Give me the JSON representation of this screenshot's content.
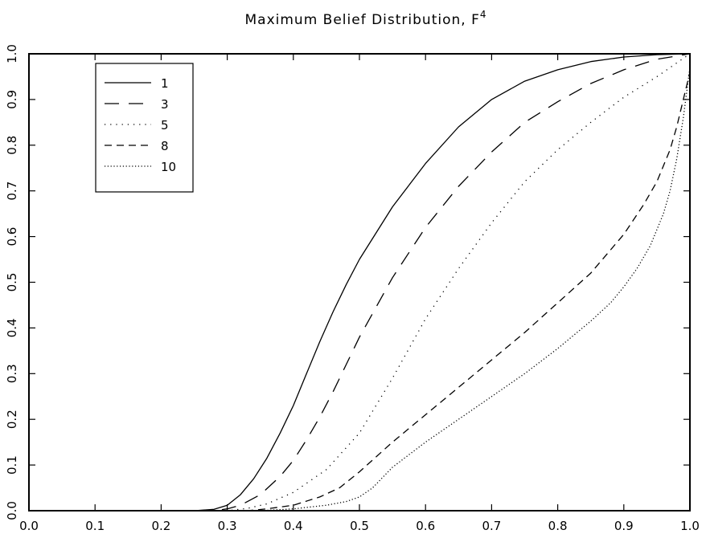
{
  "chart_data": {
    "type": "line",
    "title": "Maximum Belief Distribution, F",
    "title_superscript": "4",
    "xlabel": "",
    "ylabel": "",
    "xlim": [
      0.0,
      1.0
    ],
    "ylim": [
      0.0,
      1.0
    ],
    "x_ticks": [
      "0.0",
      "0.1",
      "0.2",
      "0.3",
      "0.4",
      "0.5",
      "0.6",
      "0.7",
      "0.8",
      "0.9",
      "1.0"
    ],
    "y_ticks": [
      "0.0",
      "0.1",
      "0.2",
      "0.3",
      "0.4",
      "0.5",
      "0.6",
      "0.7",
      "0.8",
      "0.9",
      "1.0"
    ],
    "grid": false,
    "legend_position": "top-left",
    "series": [
      {
        "name": "1",
        "dash": "solid",
        "color": "#000000",
        "x": [
          0.0,
          0.25,
          0.28,
          0.3,
          0.32,
          0.34,
          0.36,
          0.38,
          0.4,
          0.42,
          0.44,
          0.46,
          0.48,
          0.5,
          0.55,
          0.6,
          0.65,
          0.7,
          0.75,
          0.8,
          0.85,
          0.9,
          0.95,
          1.0
        ],
        "y": [
          0.0,
          0.0,
          0.003,
          0.012,
          0.035,
          0.07,
          0.115,
          0.17,
          0.23,
          0.3,
          0.37,
          0.435,
          0.495,
          0.55,
          0.665,
          0.76,
          0.84,
          0.9,
          0.94,
          0.965,
          0.983,
          0.993,
          0.998,
          1.0
        ]
      },
      {
        "name": "3",
        "dash": "long-dash",
        "color": "#000000",
        "x": [
          0.0,
          0.28,
          0.3,
          0.32,
          0.35,
          0.38,
          0.4,
          0.42,
          0.44,
          0.46,
          0.48,
          0.5,
          0.55,
          0.6,
          0.65,
          0.7,
          0.75,
          0.8,
          0.85,
          0.9,
          0.95,
          1.0
        ],
        "y": [
          0.0,
          0.0,
          0.004,
          0.012,
          0.035,
          0.075,
          0.11,
          0.155,
          0.205,
          0.26,
          0.32,
          0.38,
          0.51,
          0.62,
          0.71,
          0.785,
          0.85,
          0.895,
          0.935,
          0.965,
          0.988,
          1.0
        ]
      },
      {
        "name": "5",
        "dash": "sparse-dot",
        "color": "#000000",
        "x": [
          0.0,
          0.3,
          0.33,
          0.36,
          0.4,
          0.45,
          0.5,
          0.55,
          0.6,
          0.65,
          0.7,
          0.75,
          0.8,
          0.85,
          0.9,
          0.95,
          0.98,
          1.0
        ],
        "y": [
          0.0,
          0.0,
          0.005,
          0.015,
          0.04,
          0.09,
          0.17,
          0.29,
          0.42,
          0.53,
          0.63,
          0.72,
          0.79,
          0.85,
          0.905,
          0.95,
          0.98,
          1.0
        ]
      },
      {
        "name": "8",
        "dash": "short-dash",
        "color": "#000000",
        "x": [
          0.0,
          0.33,
          0.36,
          0.4,
          0.44,
          0.47,
          0.5,
          0.55,
          0.6,
          0.65,
          0.7,
          0.75,
          0.8,
          0.85,
          0.9,
          0.93,
          0.95,
          0.97,
          0.98,
          0.99,
          1.0
        ],
        "y": [
          0.0,
          0.0,
          0.004,
          0.012,
          0.03,
          0.05,
          0.085,
          0.15,
          0.21,
          0.27,
          0.33,
          0.39,
          0.455,
          0.52,
          0.605,
          0.67,
          0.72,
          0.79,
          0.84,
          0.9,
          0.96
        ]
      },
      {
        "name": "10",
        "dash": "dense-dot",
        "color": "#000000",
        "x": [
          0.0,
          0.35,
          0.4,
          0.45,
          0.48,
          0.5,
          0.52,
          0.55,
          0.6,
          0.65,
          0.7,
          0.75,
          0.8,
          0.85,
          0.88,
          0.9,
          0.92,
          0.94,
          0.96,
          0.97,
          0.98,
          0.99,
          1.0
        ],
        "y": [
          0.0,
          0.0,
          0.004,
          0.012,
          0.02,
          0.03,
          0.05,
          0.095,
          0.15,
          0.2,
          0.25,
          0.3,
          0.355,
          0.415,
          0.455,
          0.49,
          0.53,
          0.58,
          0.65,
          0.7,
          0.77,
          0.86,
          0.97
        ]
      }
    ]
  }
}
